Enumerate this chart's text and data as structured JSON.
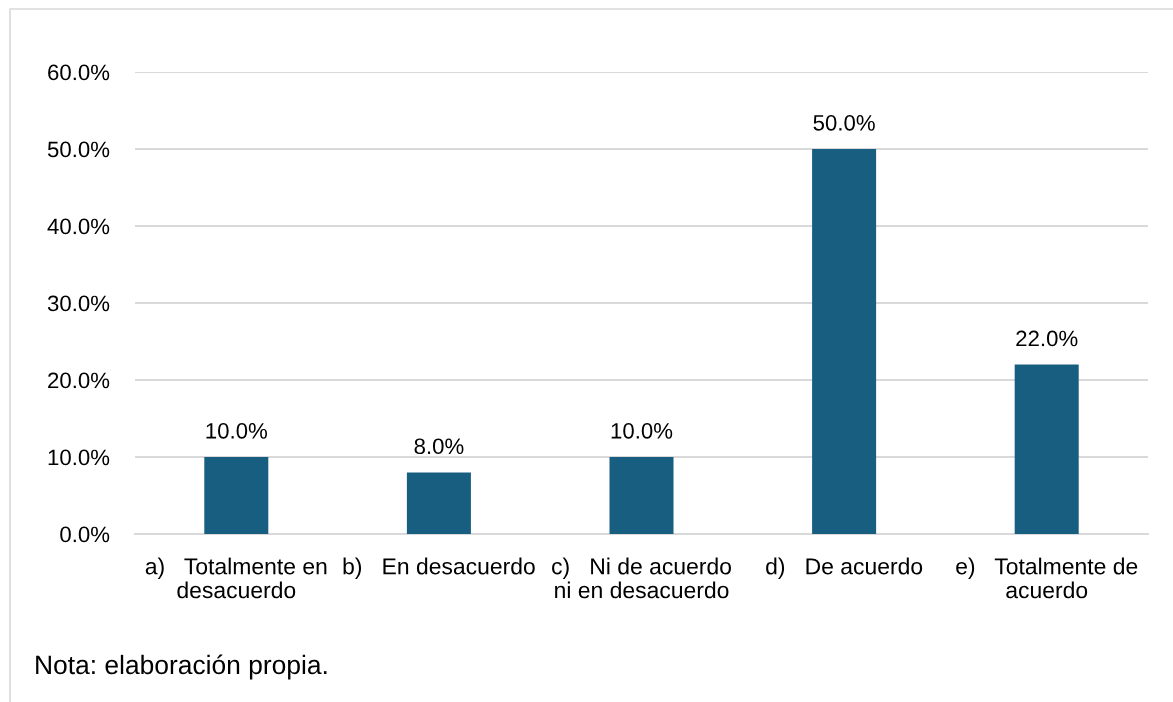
{
  "chart_data": {
    "type": "bar",
    "categories": [
      "a)   Totalmente en\ndesacuerdo",
      "b)   En desacuerdo",
      "c)   Ni de acuerdo\nni en desacuerdo",
      "d)   De acuerdo",
      "e)   Totalmente de\nacuerdo"
    ],
    "values": [
      10,
      8,
      10,
      50,
      22
    ],
    "value_labels": [
      "10.0%",
      "8.0%",
      "10.0%",
      "50.0%",
      "22.0%"
    ],
    "color": "#175e80",
    "ylim": [
      0,
      60
    ],
    "yticks": [
      {
        "value": 0,
        "label": "0.0%"
      },
      {
        "value": 10,
        "label": "10.0%"
      },
      {
        "value": 20,
        "label": "20.0%"
      },
      {
        "value": 30,
        "label": "30.0%"
      },
      {
        "value": 40,
        "label": "40.0%"
      },
      {
        "value": 50,
        "label": "50.0%"
      },
      {
        "value": 60,
        "label": "60.0%"
      }
    ],
    "grid": "y",
    "annotations": [
      "Nota: elaboración propia."
    ]
  }
}
